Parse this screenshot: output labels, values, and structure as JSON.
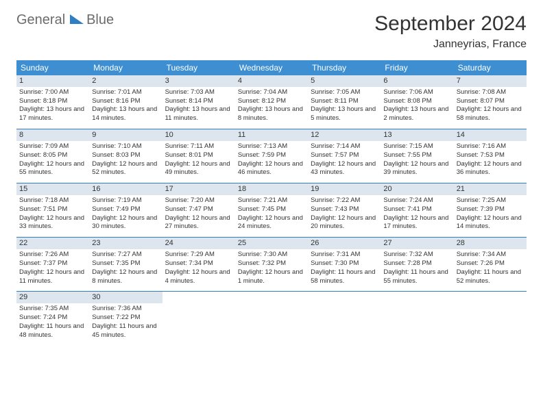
{
  "brand": {
    "part1": "General",
    "part2": "Blue",
    "text_color": "#6b6b6b",
    "accent_color": "#2f7fc2"
  },
  "title": "September 2024",
  "location": "Janneyrias, France",
  "header_bg": "#3d8fd1",
  "header_fg": "#ffffff",
  "daynum_bg": "#dde6ee",
  "row_border": "#2f7fc2",
  "weekdays": [
    "Sunday",
    "Monday",
    "Tuesday",
    "Wednesday",
    "Thursday",
    "Friday",
    "Saturday"
  ],
  "weeks": [
    [
      {
        "n": "1",
        "sr": "Sunrise: 7:00 AM",
        "ss": "Sunset: 8:18 PM",
        "dl": "Daylight: 13 hours and 17 minutes."
      },
      {
        "n": "2",
        "sr": "Sunrise: 7:01 AM",
        "ss": "Sunset: 8:16 PM",
        "dl": "Daylight: 13 hours and 14 minutes."
      },
      {
        "n": "3",
        "sr": "Sunrise: 7:03 AM",
        "ss": "Sunset: 8:14 PM",
        "dl": "Daylight: 13 hours and 11 minutes."
      },
      {
        "n": "4",
        "sr": "Sunrise: 7:04 AM",
        "ss": "Sunset: 8:12 PM",
        "dl": "Daylight: 13 hours and 8 minutes."
      },
      {
        "n": "5",
        "sr": "Sunrise: 7:05 AM",
        "ss": "Sunset: 8:11 PM",
        "dl": "Daylight: 13 hours and 5 minutes."
      },
      {
        "n": "6",
        "sr": "Sunrise: 7:06 AM",
        "ss": "Sunset: 8:08 PM",
        "dl": "Daylight: 13 hours and 2 minutes."
      },
      {
        "n": "7",
        "sr": "Sunrise: 7:08 AM",
        "ss": "Sunset: 8:07 PM",
        "dl": "Daylight: 12 hours and 58 minutes."
      }
    ],
    [
      {
        "n": "8",
        "sr": "Sunrise: 7:09 AM",
        "ss": "Sunset: 8:05 PM",
        "dl": "Daylight: 12 hours and 55 minutes."
      },
      {
        "n": "9",
        "sr": "Sunrise: 7:10 AM",
        "ss": "Sunset: 8:03 PM",
        "dl": "Daylight: 12 hours and 52 minutes."
      },
      {
        "n": "10",
        "sr": "Sunrise: 7:11 AM",
        "ss": "Sunset: 8:01 PM",
        "dl": "Daylight: 12 hours and 49 minutes."
      },
      {
        "n": "11",
        "sr": "Sunrise: 7:13 AM",
        "ss": "Sunset: 7:59 PM",
        "dl": "Daylight: 12 hours and 46 minutes."
      },
      {
        "n": "12",
        "sr": "Sunrise: 7:14 AM",
        "ss": "Sunset: 7:57 PM",
        "dl": "Daylight: 12 hours and 43 minutes."
      },
      {
        "n": "13",
        "sr": "Sunrise: 7:15 AM",
        "ss": "Sunset: 7:55 PM",
        "dl": "Daylight: 12 hours and 39 minutes."
      },
      {
        "n": "14",
        "sr": "Sunrise: 7:16 AM",
        "ss": "Sunset: 7:53 PM",
        "dl": "Daylight: 12 hours and 36 minutes."
      }
    ],
    [
      {
        "n": "15",
        "sr": "Sunrise: 7:18 AM",
        "ss": "Sunset: 7:51 PM",
        "dl": "Daylight: 12 hours and 33 minutes."
      },
      {
        "n": "16",
        "sr": "Sunrise: 7:19 AM",
        "ss": "Sunset: 7:49 PM",
        "dl": "Daylight: 12 hours and 30 minutes."
      },
      {
        "n": "17",
        "sr": "Sunrise: 7:20 AM",
        "ss": "Sunset: 7:47 PM",
        "dl": "Daylight: 12 hours and 27 minutes."
      },
      {
        "n": "18",
        "sr": "Sunrise: 7:21 AM",
        "ss": "Sunset: 7:45 PM",
        "dl": "Daylight: 12 hours and 24 minutes."
      },
      {
        "n": "19",
        "sr": "Sunrise: 7:22 AM",
        "ss": "Sunset: 7:43 PM",
        "dl": "Daylight: 12 hours and 20 minutes."
      },
      {
        "n": "20",
        "sr": "Sunrise: 7:24 AM",
        "ss": "Sunset: 7:41 PM",
        "dl": "Daylight: 12 hours and 17 minutes."
      },
      {
        "n": "21",
        "sr": "Sunrise: 7:25 AM",
        "ss": "Sunset: 7:39 PM",
        "dl": "Daylight: 12 hours and 14 minutes."
      }
    ],
    [
      {
        "n": "22",
        "sr": "Sunrise: 7:26 AM",
        "ss": "Sunset: 7:37 PM",
        "dl": "Daylight: 12 hours and 11 minutes."
      },
      {
        "n": "23",
        "sr": "Sunrise: 7:27 AM",
        "ss": "Sunset: 7:35 PM",
        "dl": "Daylight: 12 hours and 8 minutes."
      },
      {
        "n": "24",
        "sr": "Sunrise: 7:29 AM",
        "ss": "Sunset: 7:34 PM",
        "dl": "Daylight: 12 hours and 4 minutes."
      },
      {
        "n": "25",
        "sr": "Sunrise: 7:30 AM",
        "ss": "Sunset: 7:32 PM",
        "dl": "Daylight: 12 hours and 1 minute."
      },
      {
        "n": "26",
        "sr": "Sunrise: 7:31 AM",
        "ss": "Sunset: 7:30 PM",
        "dl": "Daylight: 11 hours and 58 minutes."
      },
      {
        "n": "27",
        "sr": "Sunrise: 7:32 AM",
        "ss": "Sunset: 7:28 PM",
        "dl": "Daylight: 11 hours and 55 minutes."
      },
      {
        "n": "28",
        "sr": "Sunrise: 7:34 AM",
        "ss": "Sunset: 7:26 PM",
        "dl": "Daylight: 11 hours and 52 minutes."
      }
    ],
    [
      {
        "n": "29",
        "sr": "Sunrise: 7:35 AM",
        "ss": "Sunset: 7:24 PM",
        "dl": "Daylight: 11 hours and 48 minutes."
      },
      {
        "n": "30",
        "sr": "Sunrise: 7:36 AM",
        "ss": "Sunset: 7:22 PM",
        "dl": "Daylight: 11 hours and 45 minutes."
      },
      null,
      null,
      null,
      null,
      null
    ]
  ]
}
